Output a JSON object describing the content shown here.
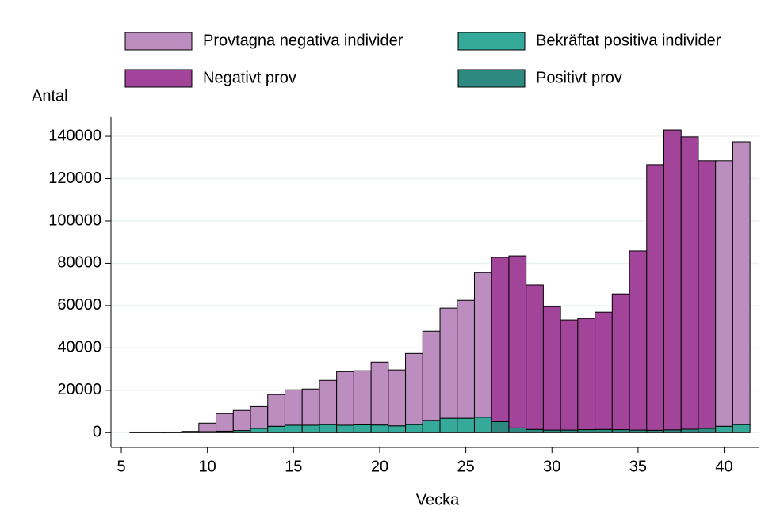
{
  "chart_data": {
    "type": "bar",
    "stacked": true,
    "x_label": "Vecka",
    "y_label": "Antal",
    "categories": [
      6,
      7,
      8,
      9,
      10,
      11,
      12,
      13,
      14,
      15,
      16,
      17,
      18,
      19,
      20,
      21,
      22,
      23,
      24,
      25,
      26,
      27,
      28,
      29,
      30,
      31,
      32,
      33,
      34,
      35,
      36,
      37,
      38,
      39,
      40,
      41
    ],
    "series": [
      {
        "name": "Provtagna negativa individer",
        "color": "#bc8dbf",
        "values": [
          250,
          250,
          250,
          400,
          4000,
          8300,
          9500,
          10300,
          15000,
          16700,
          17100,
          20900,
          25300,
          25500,
          29700,
          26400,
          33600,
          42100,
          52000,
          55700,
          68300,
          null,
          null,
          null,
          null,
          null,
          null,
          null,
          null,
          null,
          null,
          null,
          null,
          null,
          125500,
          133600
        ]
      },
      {
        "name": "Bekräftat positiva individer",
        "color": "#35a99a",
        "values": [
          50,
          50,
          50,
          200,
          500,
          700,
          1000,
          2000,
          3000,
          3500,
          3500,
          3800,
          3500,
          3700,
          3600,
          3200,
          3800,
          5800,
          6800,
          6800,
          7300,
          null,
          null,
          null,
          null,
          null,
          null,
          null,
          null,
          null,
          null,
          null,
          null,
          null,
          3000,
          3800
        ]
      },
      {
        "name": "Negativt prov",
        "color": "#a3449b",
        "values": [
          null,
          null,
          null,
          null,
          null,
          null,
          null,
          null,
          null,
          null,
          null,
          null,
          null,
          null,
          null,
          null,
          null,
          null,
          null,
          null,
          null,
          77600,
          81300,
          68200,
          58300,
          52000,
          52500,
          55400,
          64100,
          84600,
          125500,
          141700,
          138100,
          126500,
          null,
          null
        ]
      },
      {
        "name": "Positivt prov",
        "color": "#2e8a80",
        "values": [
          null,
          null,
          null,
          null,
          null,
          null,
          null,
          null,
          null,
          null,
          null,
          null,
          null,
          null,
          null,
          null,
          null,
          null,
          null,
          null,
          null,
          5200,
          2200,
          1500,
          1200,
          1200,
          1400,
          1500,
          1400,
          1200,
          1100,
          1300,
          1600,
          2000,
          null,
          null
        ]
      }
    ],
    "xlim": [
      4.4,
      42
    ],
    "xticks": [
      5,
      10,
      15,
      20,
      25,
      30,
      35,
      40
    ],
    "ylim": [
      -7000,
      149000
    ],
    "yticks": [
      0,
      20000,
      40000,
      60000,
      80000,
      100000,
      120000,
      140000
    ],
    "grid": true
  }
}
